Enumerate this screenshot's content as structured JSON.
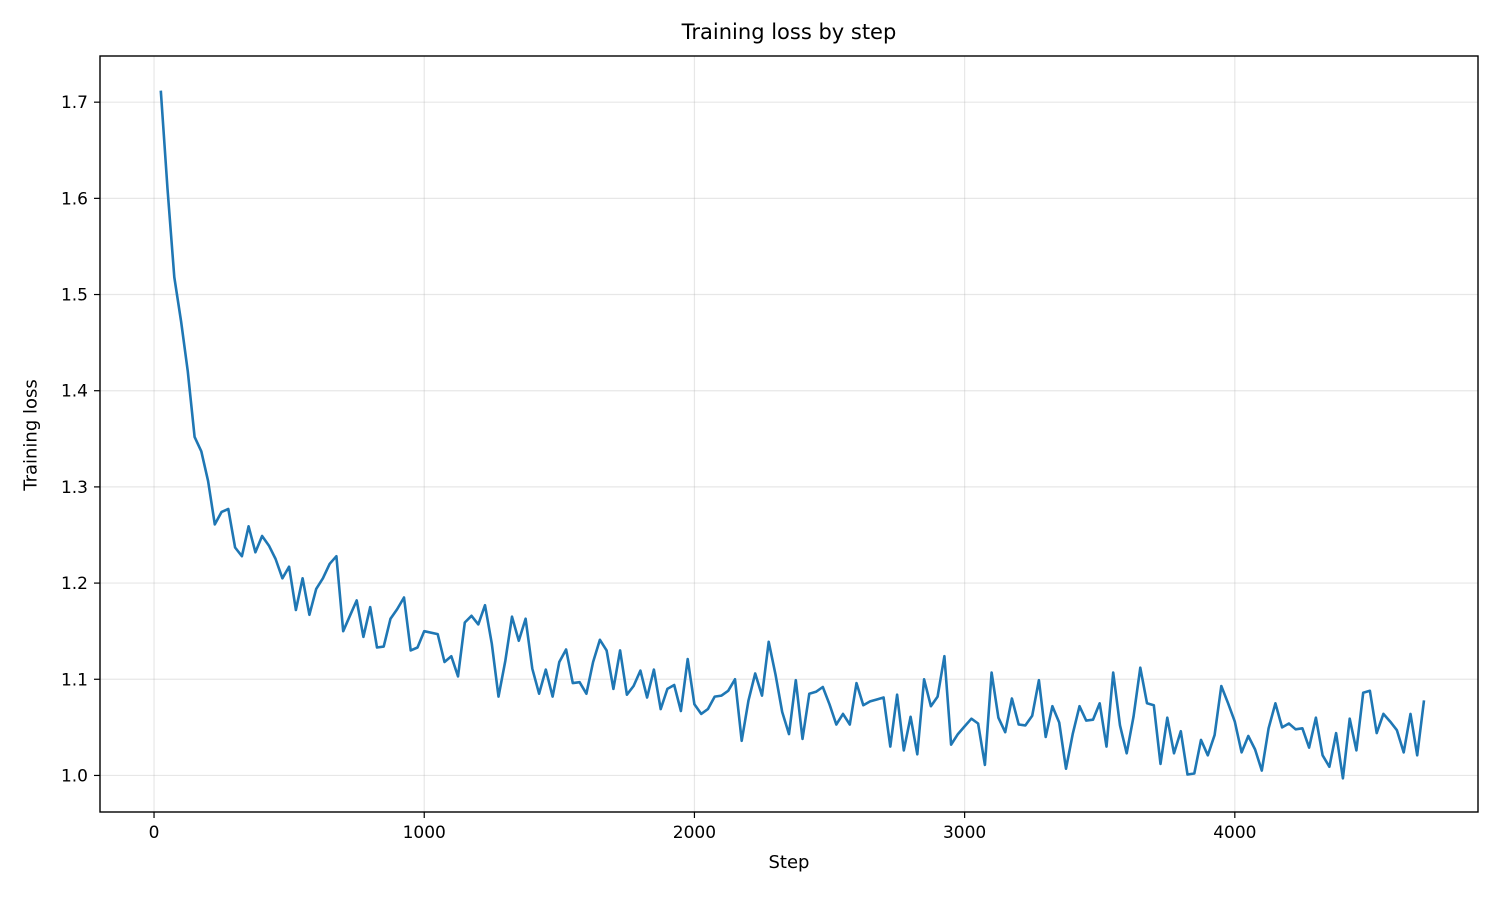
{
  "chart_data": {
    "type": "line",
    "title": "Training loss by step",
    "xlabel": "Step",
    "ylabel": "Training loss",
    "xlim": [
      -200,
      4900
    ],
    "ylim": [
      0.962,
      1.748
    ],
    "xticks": [
      0,
      1000,
      2000,
      3000,
      4000
    ],
    "xtick_labels": [
      "0",
      "1000",
      "2000",
      "3000",
      "4000"
    ],
    "yticks": [
      1.0,
      1.1,
      1.2,
      1.3,
      1.4,
      1.5,
      1.6,
      1.7
    ],
    "ytick_labels": [
      "1.0",
      "1.1",
      "1.2",
      "1.3",
      "1.4",
      "1.5",
      "1.6",
      "1.7"
    ],
    "grid": true,
    "line_color": "#1f77b4",
    "series": [
      {
        "x": [
          25,
          50,
          75,
          100,
          125,
          150,
          175,
          200,
          225,
          250,
          275,
          300,
          325,
          350,
          375,
          400,
          425,
          450,
          475,
          500,
          525,
          550,
          575,
          600,
          625,
          650,
          675,
          700,
          725,
          750,
          775,
          800,
          825,
          850,
          875,
          900,
          925,
          950,
          975,
          1000,
          1050,
          1075,
          1100,
          1125,
          1150,
          1175,
          1200,
          1225,
          1250,
          1275,
          1300,
          1325,
          1350,
          1375,
          1400,
          1425,
          1450,
          1475,
          1500,
          1525,
          1550,
          1575,
          1600,
          1625,
          1650,
          1675,
          1700,
          1725,
          1750,
          1775,
          1800,
          1825,
          1850,
          1875,
          1900,
          1925,
          1950,
          1975,
          2000,
          2025,
          2050,
          2075,
          2100,
          2125,
          2150,
          2175,
          2200,
          2225,
          2250,
          2275,
          2300,
          2325,
          2350,
          2375,
          2400,
          2425,
          2450,
          2475,
          2500,
          2525,
          2550,
          2575,
          2600,
          2625,
          2650,
          2675,
          2700,
          2725,
          2750,
          2775,
          2800,
          2825,
          2850,
          2875,
          2900,
          2925,
          2950,
          2975,
          3000,
          3025,
          3050,
          3075,
          3100,
          3125,
          3150,
          3175,
          3200,
          3225,
          3250,
          3275,
          3300,
          3325,
          3350,
          3375,
          3400,
          3425,
          3450,
          3475,
          3500,
          3525,
          3550,
          3575,
          3600,
          3625,
          3650,
          3675,
          3700,
          3725,
          3750,
          3775,
          3800,
          3825,
          3850,
          3875,
          3900,
          3925,
          3950,
          3975,
          4000,
          4025,
          4050,
          4075,
          4100,
          4125,
          4150,
          4175,
          4200,
          4225,
          4250,
          4275,
          4300,
          4325,
          4350,
          4375,
          4400,
          4425,
          4450,
          4475,
          4500,
          4525,
          4550,
          4575,
          4600,
          4625,
          4650,
          4675,
          4700
        ],
        "y": [
          1.712,
          1.61,
          1.518,
          1.472,
          1.42,
          1.352,
          1.337,
          1.306,
          1.261,
          1.274,
          1.277,
          1.237,
          1.228,
          1.259,
          1.232,
          1.249,
          1.239,
          1.225,
          1.205,
          1.217,
          1.172,
          1.205,
          1.167,
          1.194,
          1.205,
          1.22,
          1.228,
          1.15,
          1.166,
          1.182,
          1.144,
          1.175,
          1.133,
          1.134,
          1.163,
          1.173,
          1.185,
          1.13,
          1.133,
          1.15,
          1.147,
          1.118,
          1.124,
          1.103,
          1.159,
          1.166,
          1.157,
          1.177,
          1.137,
          1.082,
          1.119,
          1.165,
          1.14,
          1.163,
          1.111,
          1.085,
          1.11,
          1.082,
          1.118,
          1.131,
          1.096,
          1.097,
          1.085,
          1.118,
          1.141,
          1.13,
          1.09,
          1.13,
          1.084,
          1.093,
          1.109,
          1.081,
          1.11,
          1.069,
          1.09,
          1.094,
          1.067,
          1.121,
          1.074,
          1.064,
          1.069,
          1.082,
          1.083,
          1.088,
          1.1,
          1.036,
          1.078,
          1.106,
          1.083,
          1.139,
          1.105,
          1.066,
          1.043,
          1.099,
          1.038,
          1.085,
          1.087,
          1.092,
          1.074,
          1.053,
          1.064,
          1.053,
          1.096,
          1.073,
          1.077,
          1.079,
          1.081,
          1.03,
          1.084,
          1.026,
          1.061,
          1.022,
          1.1,
          1.072,
          1.082,
          1.124,
          1.032,
          1.043,
          1.051,
          1.059,
          1.054,
          1.011,
          1.107,
          1.06,
          1.045,
          1.08,
          1.053,
          1.052,
          1.062,
          1.099,
          1.04,
          1.072,
          1.055,
          1.007,
          1.043,
          1.072,
          1.057,
          1.058,
          1.075,
          1.03,
          1.107,
          1.052,
          1.023,
          1.061,
          1.112,
          1.075,
          1.073,
          1.012,
          1.06,
          1.023,
          1.046,
          1.001,
          1.002,
          1.037,
          1.021,
          1.042,
          1.093,
          1.075,
          1.056,
          1.024,
          1.041,
          1.027,
          1.005,
          1.049,
          1.075,
          1.05,
          1.054,
          1.048,
          1.049,
          1.029,
          1.06,
          1.021,
          1.009,
          1.044,
          0.997,
          1.059,
          1.026,
          1.086,
          1.088,
          1.044,
          1.064,
          1.056,
          1.047,
          1.024,
          1.064,
          1.021,
          1.078
        ]
      }
    ]
  }
}
